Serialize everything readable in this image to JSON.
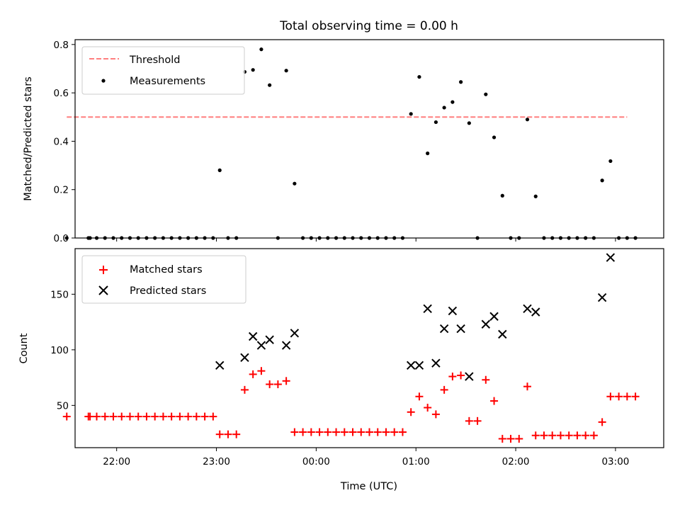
{
  "chart_data": {
    "title": "Total observing time = 0.00 h",
    "xlabel": "Time (UTC)",
    "x_tick_labels": [
      "22:00",
      "23:00",
      "00:00",
      "01:00",
      "02:00",
      "03:00"
    ],
    "x_tick_times": [
      "22:00",
      "23:00",
      "00:00",
      "01:00",
      "02:00",
      "03:00"
    ],
    "x_range": [
      "21:35",
      "03:29"
    ],
    "top": {
      "type": "scatter",
      "ylabel": "Matched/Predicted stars",
      "ylim": [
        0,
        0.82
      ],
      "y_ticks": [
        0.0,
        0.2,
        0.4,
        0.6,
        0.8
      ],
      "y_tick_labels": [
        "0.0",
        "0.2",
        "0.4",
        "0.6",
        "0.8"
      ],
      "legend": {
        "placement": "upper-left",
        "entries": [
          "Threshold",
          "Measurements"
        ]
      },
      "threshold": {
        "name": "Threshold",
        "value": 0.5,
        "x_range": [
          "21:30",
          "03:07"
        ],
        "color": "#ff7f7f",
        "style": "dashed"
      },
      "measurements": {
        "name": "Measurements",
        "color": "#000000",
        "points": [
          [
            "21:30",
            0.0
          ],
          [
            "21:43",
            0.0
          ],
          [
            "21:44",
            0.0
          ],
          [
            "21:48",
            0.0
          ],
          [
            "21:53",
            0.0
          ],
          [
            "21:58",
            0.0
          ],
          [
            "22:03",
            0.0
          ],
          [
            "22:08",
            0.0
          ],
          [
            "22:13",
            0.0
          ],
          [
            "22:18",
            0.0
          ],
          [
            "22:23",
            0.0
          ],
          [
            "22:28",
            0.0
          ],
          [
            "22:33",
            0.0
          ],
          [
            "22:38",
            0.0
          ],
          [
            "22:43",
            0.0
          ],
          [
            "22:48",
            0.0
          ],
          [
            "22:53",
            0.0
          ],
          [
            "22:58",
            0.0
          ],
          [
            "23:02",
            0.28
          ],
          [
            "23:07",
            0.0
          ],
          [
            "23:12",
            0.0
          ],
          [
            "23:17",
            0.687
          ],
          [
            "23:22",
            0.695
          ],
          [
            "23:27",
            0.78
          ],
          [
            "23:32",
            0.632
          ],
          [
            "23:37",
            0.0
          ],
          [
            "23:42",
            0.692
          ],
          [
            "23:47",
            0.225
          ],
          [
            "23:52",
            0.0
          ],
          [
            "23:57",
            0.0
          ],
          [
            "00:02",
            0.0
          ],
          [
            "00:07",
            0.0
          ],
          [
            "00:12",
            0.0
          ],
          [
            "00:17",
            0.0
          ],
          [
            "00:22",
            0.0
          ],
          [
            "00:27",
            0.0
          ],
          [
            "00:32",
            0.0
          ],
          [
            "00:37",
            0.0
          ],
          [
            "00:42",
            0.0
          ],
          [
            "00:47",
            0.0
          ],
          [
            "00:52",
            0.0
          ],
          [
            "00:57",
            0.513
          ],
          [
            "01:02",
            0.666
          ],
          [
            "01:07",
            0.35
          ],
          [
            "01:12",
            0.479
          ],
          [
            "01:17",
            0.539
          ],
          [
            "01:22",
            0.562
          ],
          [
            "01:27",
            0.645
          ],
          [
            "01:32",
            0.475
          ],
          [
            "01:37",
            0.0
          ],
          [
            "01:42",
            0.594
          ],
          [
            "01:47",
            0.416
          ],
          [
            "01:52",
            0.175
          ],
          [
            "01:57",
            0.0
          ],
          [
            "02:02",
            0.0
          ],
          [
            "02:07",
            0.49
          ],
          [
            "02:12",
            0.172
          ],
          [
            "02:17",
            0.0
          ],
          [
            "02:22",
            0.0
          ],
          [
            "02:27",
            0.0
          ],
          [
            "02:32",
            0.0
          ],
          [
            "02:37",
            0.0
          ],
          [
            "02:42",
            0.0
          ],
          [
            "02:47",
            0.0
          ],
          [
            "02:52",
            0.238
          ],
          [
            "02:57",
            0.318
          ],
          [
            "03:02",
            0.0
          ],
          [
            "03:07",
            0.0
          ],
          [
            "03:12",
            0.0
          ]
        ]
      }
    },
    "bottom": {
      "type": "scatter",
      "ylabel": "Count",
      "ylim": [
        12,
        191
      ],
      "y_ticks": [
        50,
        100,
        150
      ],
      "y_tick_labels": [
        "50",
        "100",
        "150"
      ],
      "legend": {
        "placement": "upper-left",
        "entries": [
          "Matched stars",
          "Predicted stars"
        ]
      },
      "matched": {
        "name": "Matched stars",
        "color": "#ff0000",
        "points": [
          [
            "21:30",
            40
          ],
          [
            "21:43",
            40
          ],
          [
            "21:44",
            40
          ],
          [
            "21:48",
            40
          ],
          [
            "21:53",
            40
          ],
          [
            "21:58",
            40
          ],
          [
            "22:03",
            40
          ],
          [
            "22:08",
            40
          ],
          [
            "22:13",
            40
          ],
          [
            "22:18",
            40
          ],
          [
            "22:23",
            40
          ],
          [
            "22:28",
            40
          ],
          [
            "22:33",
            40
          ],
          [
            "22:38",
            40
          ],
          [
            "22:43",
            40
          ],
          [
            "22:48",
            40
          ],
          [
            "22:53",
            40
          ],
          [
            "22:58",
            40
          ],
          [
            "23:02",
            24
          ],
          [
            "23:07",
            24
          ],
          [
            "23:12",
            24
          ],
          [
            "23:17",
            64
          ],
          [
            "23:22",
            78
          ],
          [
            "23:27",
            81
          ],
          [
            "23:32",
            69
          ],
          [
            "23:37",
            69
          ],
          [
            "23:42",
            72
          ],
          [
            "23:47",
            26
          ],
          [
            "23:52",
            26
          ],
          [
            "23:57",
            26
          ],
          [
            "00:02",
            26
          ],
          [
            "00:07",
            26
          ],
          [
            "00:12",
            26
          ],
          [
            "00:17",
            26
          ],
          [
            "00:22",
            26
          ],
          [
            "00:27",
            26
          ],
          [
            "00:32",
            26
          ],
          [
            "00:37",
            26
          ],
          [
            "00:42",
            26
          ],
          [
            "00:47",
            26
          ],
          [
            "00:52",
            26
          ],
          [
            "00:57",
            44
          ],
          [
            "01:02",
            58
          ],
          [
            "01:07",
            48
          ],
          [
            "01:12",
            42
          ],
          [
            "01:17",
            64
          ],
          [
            "01:22",
            76
          ],
          [
            "01:27",
            77
          ],
          [
            "01:32",
            36
          ],
          [
            "01:37",
            36
          ],
          [
            "01:42",
            73
          ],
          [
            "01:47",
            54
          ],
          [
            "01:52",
            20
          ],
          [
            "01:57",
            20
          ],
          [
            "02:02",
            20
          ],
          [
            "02:07",
            67
          ],
          [
            "02:12",
            23
          ],
          [
            "02:17",
            23
          ],
          [
            "02:22",
            23
          ],
          [
            "02:27",
            23
          ],
          [
            "02:32",
            23
          ],
          [
            "02:37",
            23
          ],
          [
            "02:42",
            23
          ],
          [
            "02:47",
            23
          ],
          [
            "02:52",
            35
          ],
          [
            "02:57",
            58
          ],
          [
            "03:02",
            58
          ],
          [
            "03:07",
            58
          ],
          [
            "03:12",
            58
          ]
        ]
      },
      "predicted": {
        "name": "Predicted stars",
        "color": "#000000",
        "points": [
          [
            "23:02",
            86
          ],
          [
            "23:17",
            93
          ],
          [
            "23:22",
            112
          ],
          [
            "23:27",
            104
          ],
          [
            "23:32",
            109
          ],
          [
            "23:42",
            104
          ],
          [
            "23:47",
            115
          ],
          [
            "00:57",
            86
          ],
          [
            "01:02",
            86
          ],
          [
            "01:07",
            137
          ],
          [
            "01:12",
            88
          ],
          [
            "01:17",
            119
          ],
          [
            "01:22",
            135
          ],
          [
            "01:27",
            119
          ],
          [
            "01:32",
            76
          ],
          [
            "01:42",
            123
          ],
          [
            "01:47",
            130
          ],
          [
            "01:52",
            114
          ],
          [
            "02:07",
            137
          ],
          [
            "02:12",
            134
          ],
          [
            "02:52",
            147
          ],
          [
            "02:57",
            183
          ]
        ]
      }
    }
  }
}
